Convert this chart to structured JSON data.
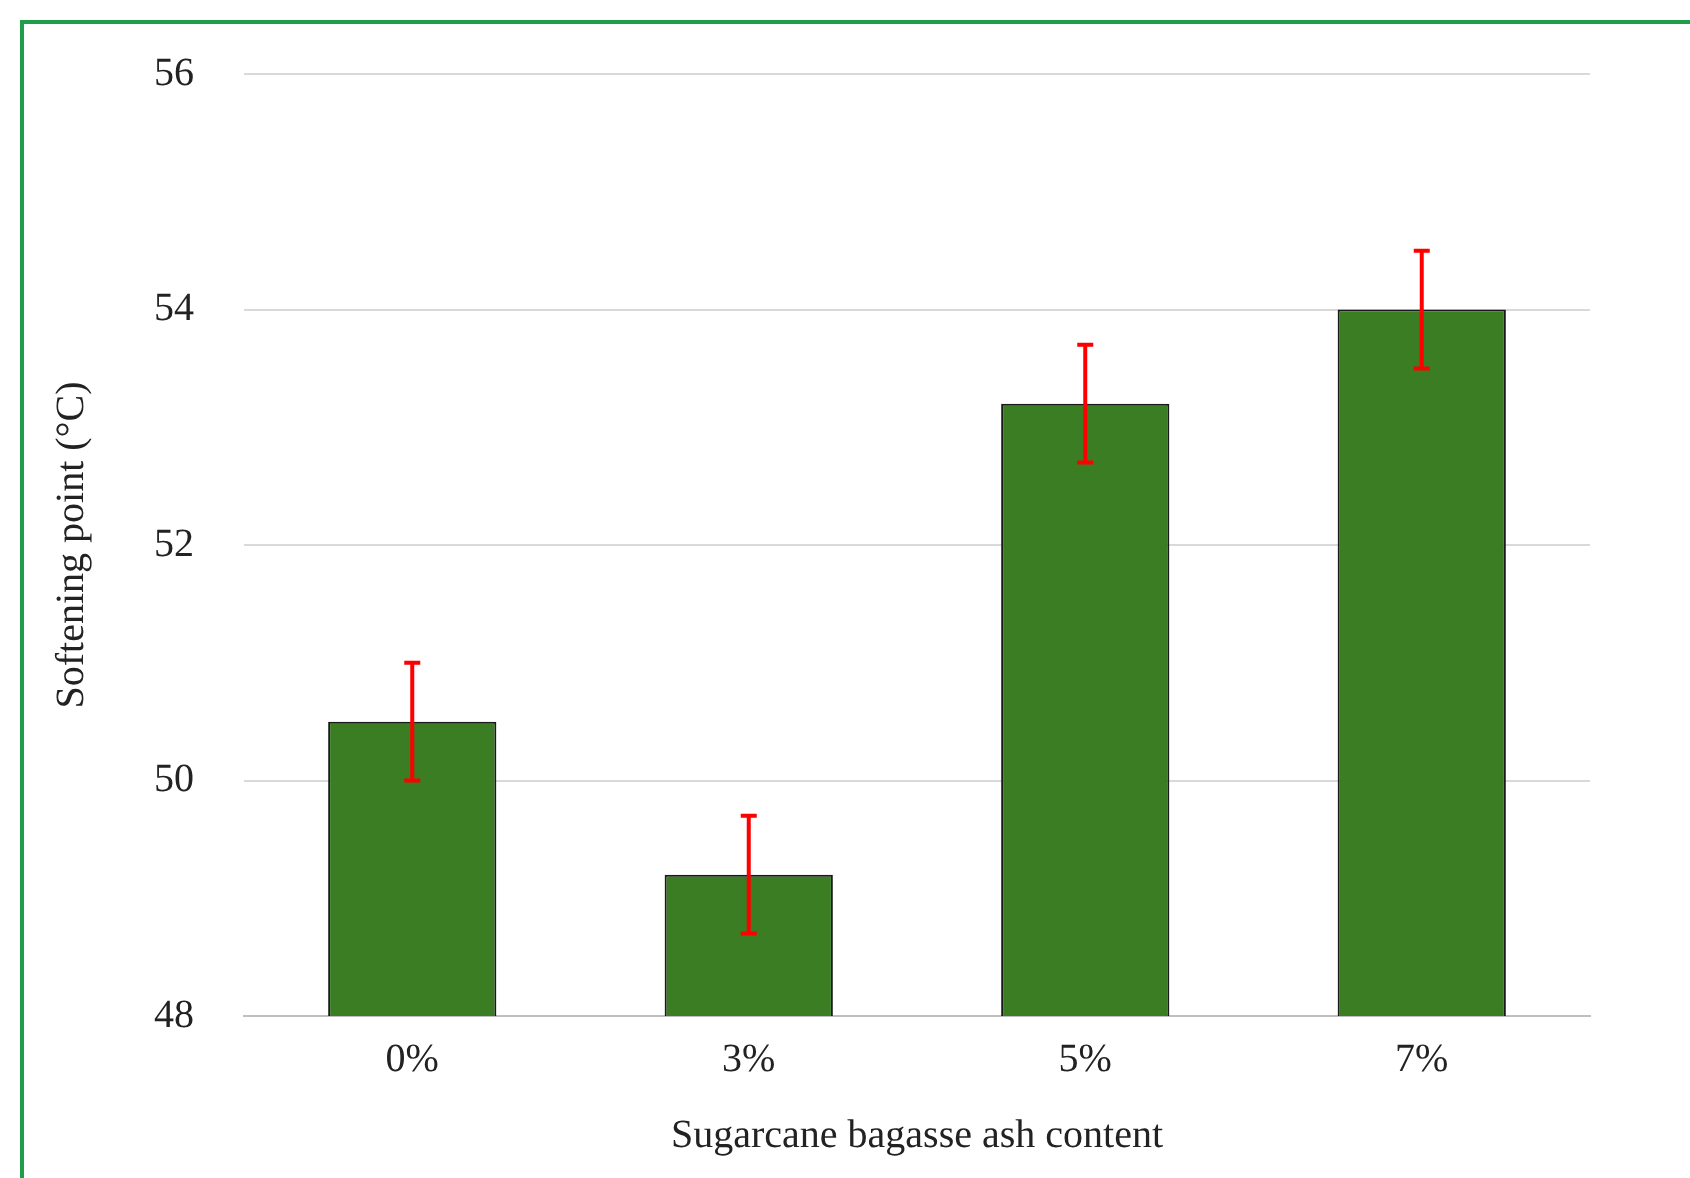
{
  "chart_data": {
    "type": "bar",
    "xlabel": "Sugarcane bagasse ash content",
    "ylabel": "Softening point (°C)",
    "categories": [
      "0%",
      "3%",
      "5%",
      "7%"
    ],
    "values": [
      50.5,
      49.2,
      53.2,
      54.0
    ],
    "errors": [
      0.5,
      0.5,
      0.5,
      0.5
    ],
    "color": "#3a7d22",
    "ylim": [
      48,
      56
    ],
    "yticks": [
      48,
      50,
      52,
      54,
      56
    ],
    "grid": "y",
    "legend": false
  }
}
